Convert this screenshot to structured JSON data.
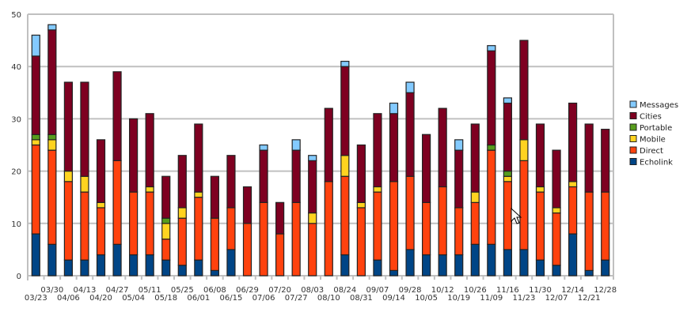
{
  "chart_data": {
    "type": "bar",
    "stacked": true,
    "ylim": [
      0,
      50
    ],
    "yticks": [
      0,
      10,
      20,
      30,
      40,
      50
    ],
    "grid": true,
    "legend_position": "right",
    "categories": [
      "03/23",
      "03/30",
      "04/06",
      "04/13",
      "04/20",
      "04/27",
      "05/04",
      "05/11",
      "05/18",
      "05/25",
      "06/01",
      "06/08",
      "06/15",
      "06/29",
      "07/06",
      "07/20",
      "07/27",
      "08/03",
      "08/10",
      "08/24",
      "08/31",
      "09/07",
      "09/14",
      "09/28",
      "10/05",
      "10/12",
      "10/19",
      "10/26",
      "11/09",
      "11/16",
      "11/23",
      "11/30",
      "12/07",
      "12/14",
      "12/21",
      "12/28"
    ],
    "series": [
      {
        "name": "Echolink",
        "color": "#004586",
        "values": [
          8,
          6,
          3,
          3,
          4,
          6,
          4,
          4,
          3,
          2,
          3,
          1,
          5,
          0,
          0,
          0,
          0,
          0,
          0,
          4,
          0,
          3,
          1,
          5,
          4,
          4,
          4,
          6,
          6,
          5,
          5,
          3,
          2,
          8,
          1,
          3
        ]
      },
      {
        "name": "Direct",
        "color": "#ff420e",
        "values": [
          17,
          18,
          15,
          13,
          9,
          16,
          12,
          12,
          4,
          9,
          12,
          10,
          8,
          10,
          14,
          8,
          14,
          10,
          18,
          15,
          13,
          13,
          17,
          14,
          10,
          13,
          9,
          8,
          18,
          13,
          17,
          13,
          10,
          9,
          15,
          13
        ]
      },
      {
        "name": "Mobile",
        "color": "#ffd320",
        "values": [
          1,
          2,
          2,
          3,
          1,
          0,
          0,
          1,
          3,
          2,
          1,
          0,
          0,
          0,
          0,
          0,
          0,
          2,
          0,
          4,
          1,
          1,
          0,
          0,
          0,
          0,
          0,
          2,
          0,
          1,
          4,
          1,
          1,
          1,
          0,
          0
        ]
      },
      {
        "name": "Portable",
        "color": "#579d1c",
        "values": [
          1,
          1,
          0,
          0,
          0,
          0,
          0,
          0,
          1,
          0,
          0,
          0,
          0,
          0,
          0,
          0,
          0,
          0,
          0,
          0,
          0,
          0,
          0,
          0,
          0,
          0,
          0,
          0,
          1,
          1,
          0,
          0,
          0,
          0,
          0,
          0
        ]
      },
      {
        "name": "Cities",
        "color": "#7e0021",
        "values": [
          15,
          20,
          17,
          18,
          12,
          17,
          14,
          14,
          8,
          10,
          13,
          8,
          10,
          7,
          10,
          6,
          10,
          10,
          14,
          17,
          11,
          14,
          13,
          16,
          13,
          15,
          11,
          13,
          18,
          13,
          19,
          12,
          11,
          15,
          13,
          12
        ]
      },
      {
        "name": "Messages",
        "color": "#83caff",
        "values": [
          4,
          1,
          0,
          0,
          0,
          0,
          0,
          0,
          0,
          0,
          0,
          0,
          0,
          0,
          1,
          0,
          2,
          1,
          0,
          1,
          0,
          0,
          2,
          2,
          0,
          0,
          2,
          0,
          1,
          1,
          0,
          0,
          0,
          0,
          0,
          0
        ]
      }
    ]
  }
}
